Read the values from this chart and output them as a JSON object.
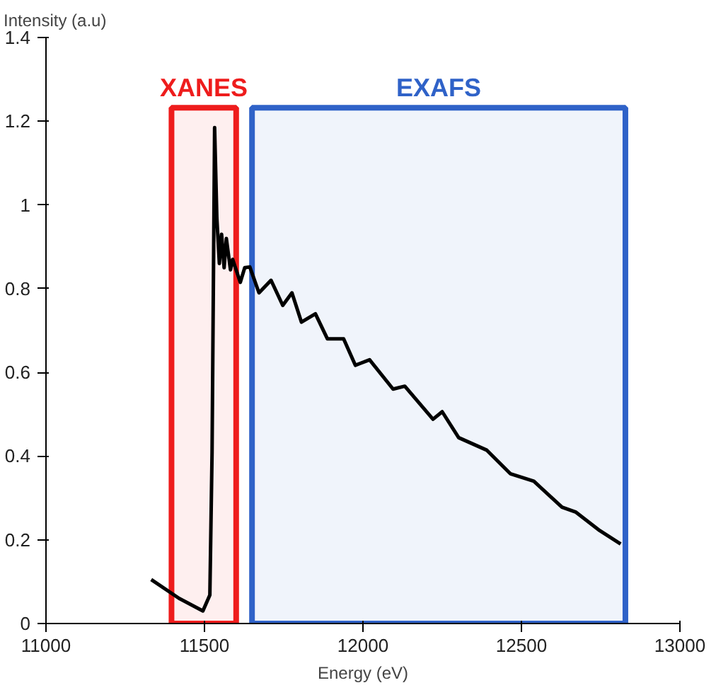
{
  "chart_data": {
    "type": "line",
    "ylabel": "Intensity (a.u)",
    "xlabel": "Energy (eV)",
    "xlim": [
      11000,
      13000
    ],
    "xticks": [
      11000,
      11500,
      12000,
      12500,
      13000
    ],
    "ylim": [
      0,
      1.4
    ],
    "yticks": [
      0,
      0.2,
      0.4,
      0.6,
      0.8,
      1,
      1.2,
      1.4
    ],
    "grid": false,
    "series": [
      {
        "color": "#000000",
        "x": [
          11332,
          11420,
          11495,
          11517,
          11524,
          11532,
          11539,
          11547,
          11554,
          11562,
          11569,
          11582,
          11589,
          11613,
          11627,
          11643,
          11672,
          11710,
          11747,
          11776,
          11806,
          11850,
          11888,
          11939,
          11976,
          12021,
          12095,
          12132,
          12221,
          12250,
          12302,
          12391,
          12465,
          12539,
          12628,
          12672,
          12747,
          12813
        ],
        "values": [
          0.105,
          0.06,
          0.03,
          0.068,
          0.41,
          1.185,
          0.97,
          0.86,
          0.93,
          0.85,
          0.92,
          0.845,
          0.87,
          0.815,
          0.85,
          0.852,
          0.79,
          0.82,
          0.76,
          0.79,
          0.72,
          0.74,
          0.68,
          0.68,
          0.617,
          0.63,
          0.56,
          0.567,
          0.488,
          0.506,
          0.444,
          0.414,
          0.358,
          0.34,
          0.278,
          0.266,
          0.222,
          0.19
        ]
      }
    ],
    "bands": [
      {
        "axis": "x",
        "from": 11396,
        "to": 11600,
        "label": "XANES",
        "color": "#ee1c1c"
      },
      {
        "axis": "x",
        "from": 11650,
        "to": 12828,
        "label": "EXAFS",
        "color": "#2f62c8"
      }
    ]
  }
}
